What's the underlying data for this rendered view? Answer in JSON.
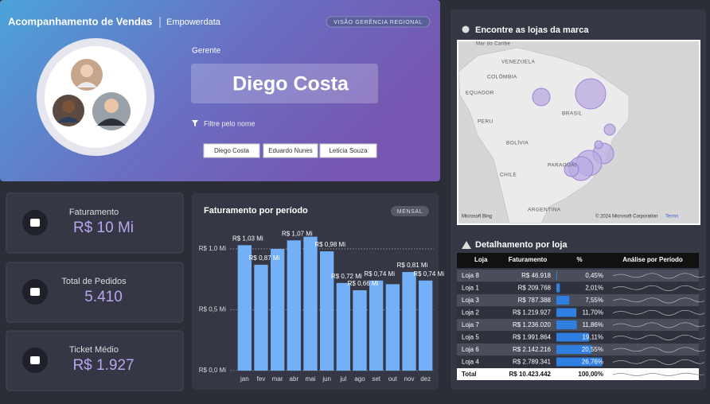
{
  "header": {
    "title": "Acompanhamento de Vendas",
    "brand": "Empowerdata",
    "badge": "VISÃO GERÊNCIA REGIONAL"
  },
  "manager": {
    "label": "Gerente",
    "name": "Diego Costa",
    "filter_label": "Filtre pelo nome",
    "options": [
      "Diego Costa",
      "Eduardo Nunes",
      "Leticia Souza"
    ]
  },
  "kpis": [
    {
      "label": "Faturamento",
      "value": "R$ 10 Mi"
    },
    {
      "label": "Total de Pedidos",
      "value": "5.410"
    },
    {
      "label": "Ticket Médio",
      "value": "R$ 1.927"
    }
  ],
  "chart_data": {
    "type": "bar",
    "title": "Faturamento por período",
    "badge": "MENSAL",
    "categories": [
      "jan",
      "fev",
      "mar",
      "abr",
      "mai",
      "jun",
      "jul",
      "ago",
      "set",
      "out",
      "nov",
      "dez"
    ],
    "values": [
      1.03,
      0.87,
      1.0,
      1.07,
      1.1,
      0.98,
      0.72,
      0.66,
      0.74,
      0.71,
      0.81,
      0.74
    ],
    "value_labels": [
      "R$ 1,03 Mi",
      "R$ 0,87 Mi",
      null,
      "R$ 1,07 Mi",
      null,
      "R$ 0,98 Mi",
      "R$ 0,72 Mi",
      "R$ 0,66 Mi",
      "R$ 0,74 Mi",
      null,
      "R$ 0,81 Mi",
      "R$ 0,74 Mi"
    ],
    "color": "#74b0f7",
    "ylim": [
      0,
      1.15
    ],
    "yticks": [
      {
        "value": 0,
        "label": "R$ 0,0 Mi"
      },
      {
        "value": 0.5,
        "label": "R$ 0,5 Mi"
      },
      {
        "value": 1.0,
        "label": "R$ 1,0 Mi"
      }
    ],
    "grid": true
  },
  "map": {
    "title": "Encontre as lojas da marca",
    "labels": [
      "Mar do Caribe",
      "VENEZUELA",
      "COLÔMBIA",
      "EQUADOR",
      "PERU",
      "BRASIL",
      "BOLÍVIA",
      "PARAGUAI",
      "CHILE",
      "ARGENTINA"
    ],
    "provider": "Microsoft Bing",
    "copyright": "© 2024 Microsoft Corporation",
    "terms": "Terms"
  },
  "table": {
    "title": "Detalhamento por loja",
    "columns": [
      "Loja",
      "Faturamento",
      "%",
      "Análise por Período"
    ],
    "rows": [
      {
        "loja": "Loja 8",
        "faturamento": "R$ 46.918",
        "pct": 0.45,
        "pct_label": "0,45%"
      },
      {
        "loja": "Loja 1",
        "faturamento": "R$ 209.768",
        "pct": 2.01,
        "pct_label": "2,01%"
      },
      {
        "loja": "Loja 3",
        "faturamento": "R$ 787.388",
        "pct": 7.55,
        "pct_label": "7,55%"
      },
      {
        "loja": "Loja 2",
        "faturamento": "R$ 1.219.927",
        "pct": 11.7,
        "pct_label": "11,70%"
      },
      {
        "loja": "Loja 7",
        "faturamento": "R$ 1.236.020",
        "pct": 11.86,
        "pct_label": "11,86%"
      },
      {
        "loja": "Loja 5",
        "faturamento": "R$ 1.991.864",
        "pct": 19.11,
        "pct_label": "19,11%"
      },
      {
        "loja": "Loja 6",
        "faturamento": "R$ 2.142.216",
        "pct": 20.55,
        "pct_label": "20,55%"
      },
      {
        "loja": "Loja 4",
        "faturamento": "R$ 2.789.341",
        "pct": 26.76,
        "pct_label": "26,76%"
      }
    ],
    "total": {
      "loja": "Total",
      "faturamento": "R$ 10.423.442",
      "pct_label": "100,00%"
    }
  }
}
